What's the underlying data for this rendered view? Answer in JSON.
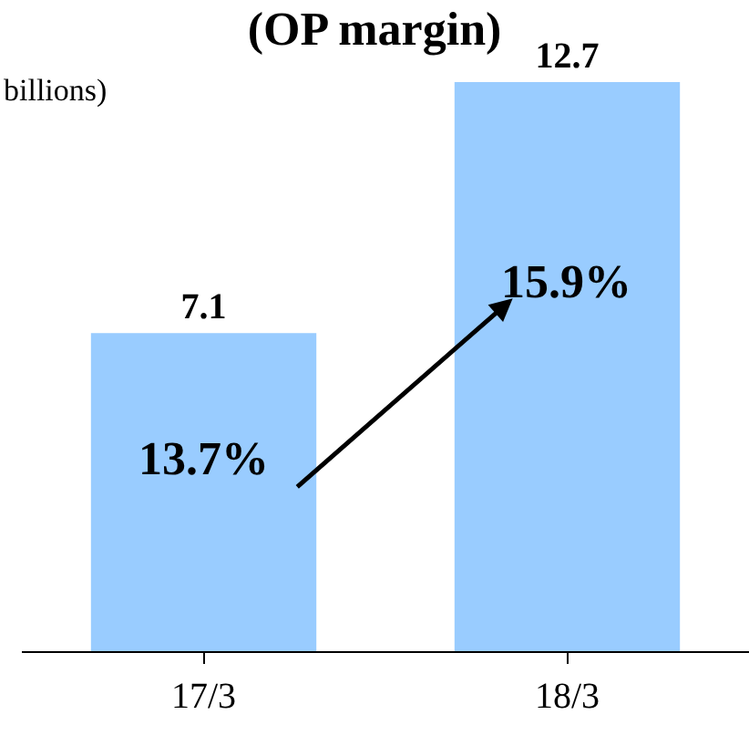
{
  "chart_data": {
    "type": "bar",
    "title": "(OP margin)",
    "categories": [
      "17/3",
      "18/3"
    ],
    "values": [
      7.1,
      12.7
    ],
    "color": "#99ccff",
    "data_labels": true,
    "tick_labels": "x",
    "legend": false,
    "annotations": [
      "billions)",
      "13.7%",
      "15.9%"
    ]
  }
}
